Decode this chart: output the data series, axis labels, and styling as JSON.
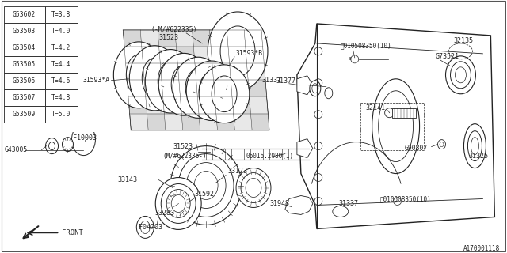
{
  "bg_color": "#ffffff",
  "line_color": "#222222",
  "watermark": "A170001118",
  "table_rows": [
    [
      "G53602",
      "T=3.8"
    ],
    [
      "G53503",
      "T=4.0"
    ],
    [
      "G53504",
      "T=4.2"
    ],
    [
      "G53505",
      "T=4.4"
    ],
    [
      "G53506",
      "T=4.6"
    ],
    [
      "G53507",
      "T=4.8"
    ],
    [
      "G53509",
      "T=5.0"
    ]
  ],
  "fig_w": 6.4,
  "fig_h": 3.2,
  "dpi": 100
}
